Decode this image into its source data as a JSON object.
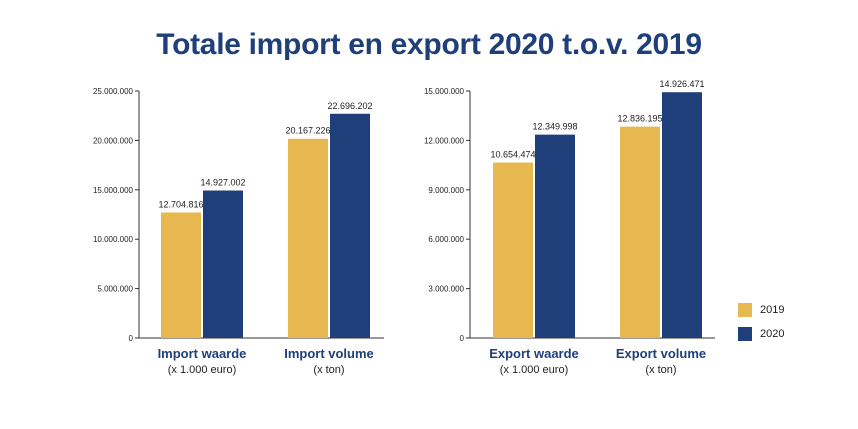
{
  "title": "Totale import en export 2020 t.o.v. 2019",
  "colors": {
    "2019": "#e6b84f",
    "2020": "#1f3f7a",
    "title": "#1f3f7a",
    "category": "#1f3f7a"
  },
  "legend": {
    "items": [
      {
        "label": "2019"
      },
      {
        "label": "2020"
      }
    ],
    "placement": "right"
  },
  "chart_data": [
    {
      "type": "bar",
      "title": "",
      "categories": [
        "Import waarde",
        "Import volume"
      ],
      "category_subtitles": [
        "(x 1.000 euro)",
        "(x ton)"
      ],
      "series": [
        {
          "name": "2019",
          "values": [
            12704816,
            20167226
          ],
          "labels": [
            "12.704.816",
            "20.167.226"
          ]
        },
        {
          "name": "2020",
          "values": [
            14927002,
            22696202
          ],
          "labels": [
            "14.927.002",
            "22.696.202"
          ]
        }
      ],
      "ylim": [
        0,
        25000000
      ],
      "yticks": [
        0,
        5000000,
        10000000,
        15000000,
        20000000,
        25000000
      ],
      "ytick_labels": [
        "0",
        "5.000.000",
        "10.000.000",
        "15.000.000",
        "20.000.000",
        "25.000.000"
      ],
      "grid": false,
      "xlabel": "",
      "ylabel": ""
    },
    {
      "type": "bar",
      "title": "",
      "categories": [
        "Export waarde",
        "Export volume"
      ],
      "category_subtitles": [
        "(x 1.000 euro)",
        "(x ton)"
      ],
      "series": [
        {
          "name": "2019",
          "values": [
            10654474,
            12836195
          ],
          "labels": [
            "10.654.474",
            "12.836.195"
          ]
        },
        {
          "name": "2020",
          "values": [
            12349998,
            14926471
          ],
          "labels": [
            "12.349.998",
            "14.926.471"
          ]
        }
      ],
      "ylim": [
        0,
        15000000
      ],
      "yticks": [
        0,
        3000000,
        6000000,
        9000000,
        12000000,
        15000000
      ],
      "ytick_labels": [
        "0",
        "3.000.000",
        "6.000.000",
        "9.000.000",
        "12.000.000",
        "15.000.000"
      ],
      "grid": false,
      "xlabel": "",
      "ylabel": ""
    }
  ]
}
